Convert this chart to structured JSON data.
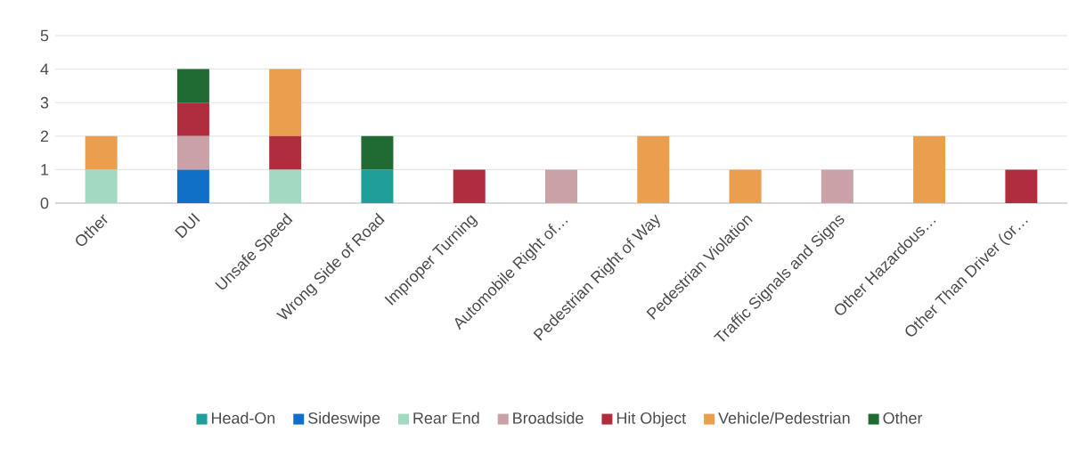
{
  "chart_data": {
    "type": "bar",
    "stacked": true,
    "categories": [
      "Other",
      "DUI",
      "Unsafe Speed",
      "Wrong Side of Road",
      "Improper Turning",
      "Automobile Right of…",
      "Pedestrian Right of Way",
      "Pedestrian Violation",
      "Traffic Signals and Signs",
      "Other Hazardous…",
      "Other Than Driver (or…"
    ],
    "series": [
      {
        "name": "Head-On",
        "color": "#1f9e9a",
        "values": [
          0,
          0,
          0,
          1,
          0,
          0,
          0,
          0,
          0,
          0,
          0
        ]
      },
      {
        "name": "Sideswipe",
        "color": "#1070c8",
        "values": [
          0,
          1,
          0,
          0,
          0,
          0,
          0,
          0,
          0,
          0,
          0
        ]
      },
      {
        "name": "Rear End",
        "color": "#a3d8c3",
        "values": [
          1,
          0,
          1,
          0,
          0,
          0,
          0,
          0,
          0,
          0,
          0
        ]
      },
      {
        "name": "Broadside",
        "color": "#c9a1a6",
        "values": [
          0,
          1,
          0,
          0,
          0,
          1,
          0,
          0,
          1,
          0,
          0
        ]
      },
      {
        "name": "Hit Object",
        "color": "#b02d3e",
        "values": [
          0,
          1,
          1,
          0,
          1,
          0,
          0,
          0,
          0,
          0,
          1
        ]
      },
      {
        "name": "Vehicle/Pedestrian",
        "color": "#eb9e4e",
        "values": [
          1,
          0,
          2,
          0,
          0,
          0,
          2,
          1,
          0,
          2,
          0
        ]
      },
      {
        "name": "Other",
        "color": "#1f6b33",
        "values": [
          0,
          1,
          0,
          1,
          0,
          0,
          0,
          0,
          0,
          0,
          0
        ]
      }
    ],
    "ylim": [
      0,
      5
    ],
    "yticks": [
      0,
      1,
      2,
      3,
      4,
      5
    ],
    "grid": "y",
    "legend": "bottom"
  }
}
